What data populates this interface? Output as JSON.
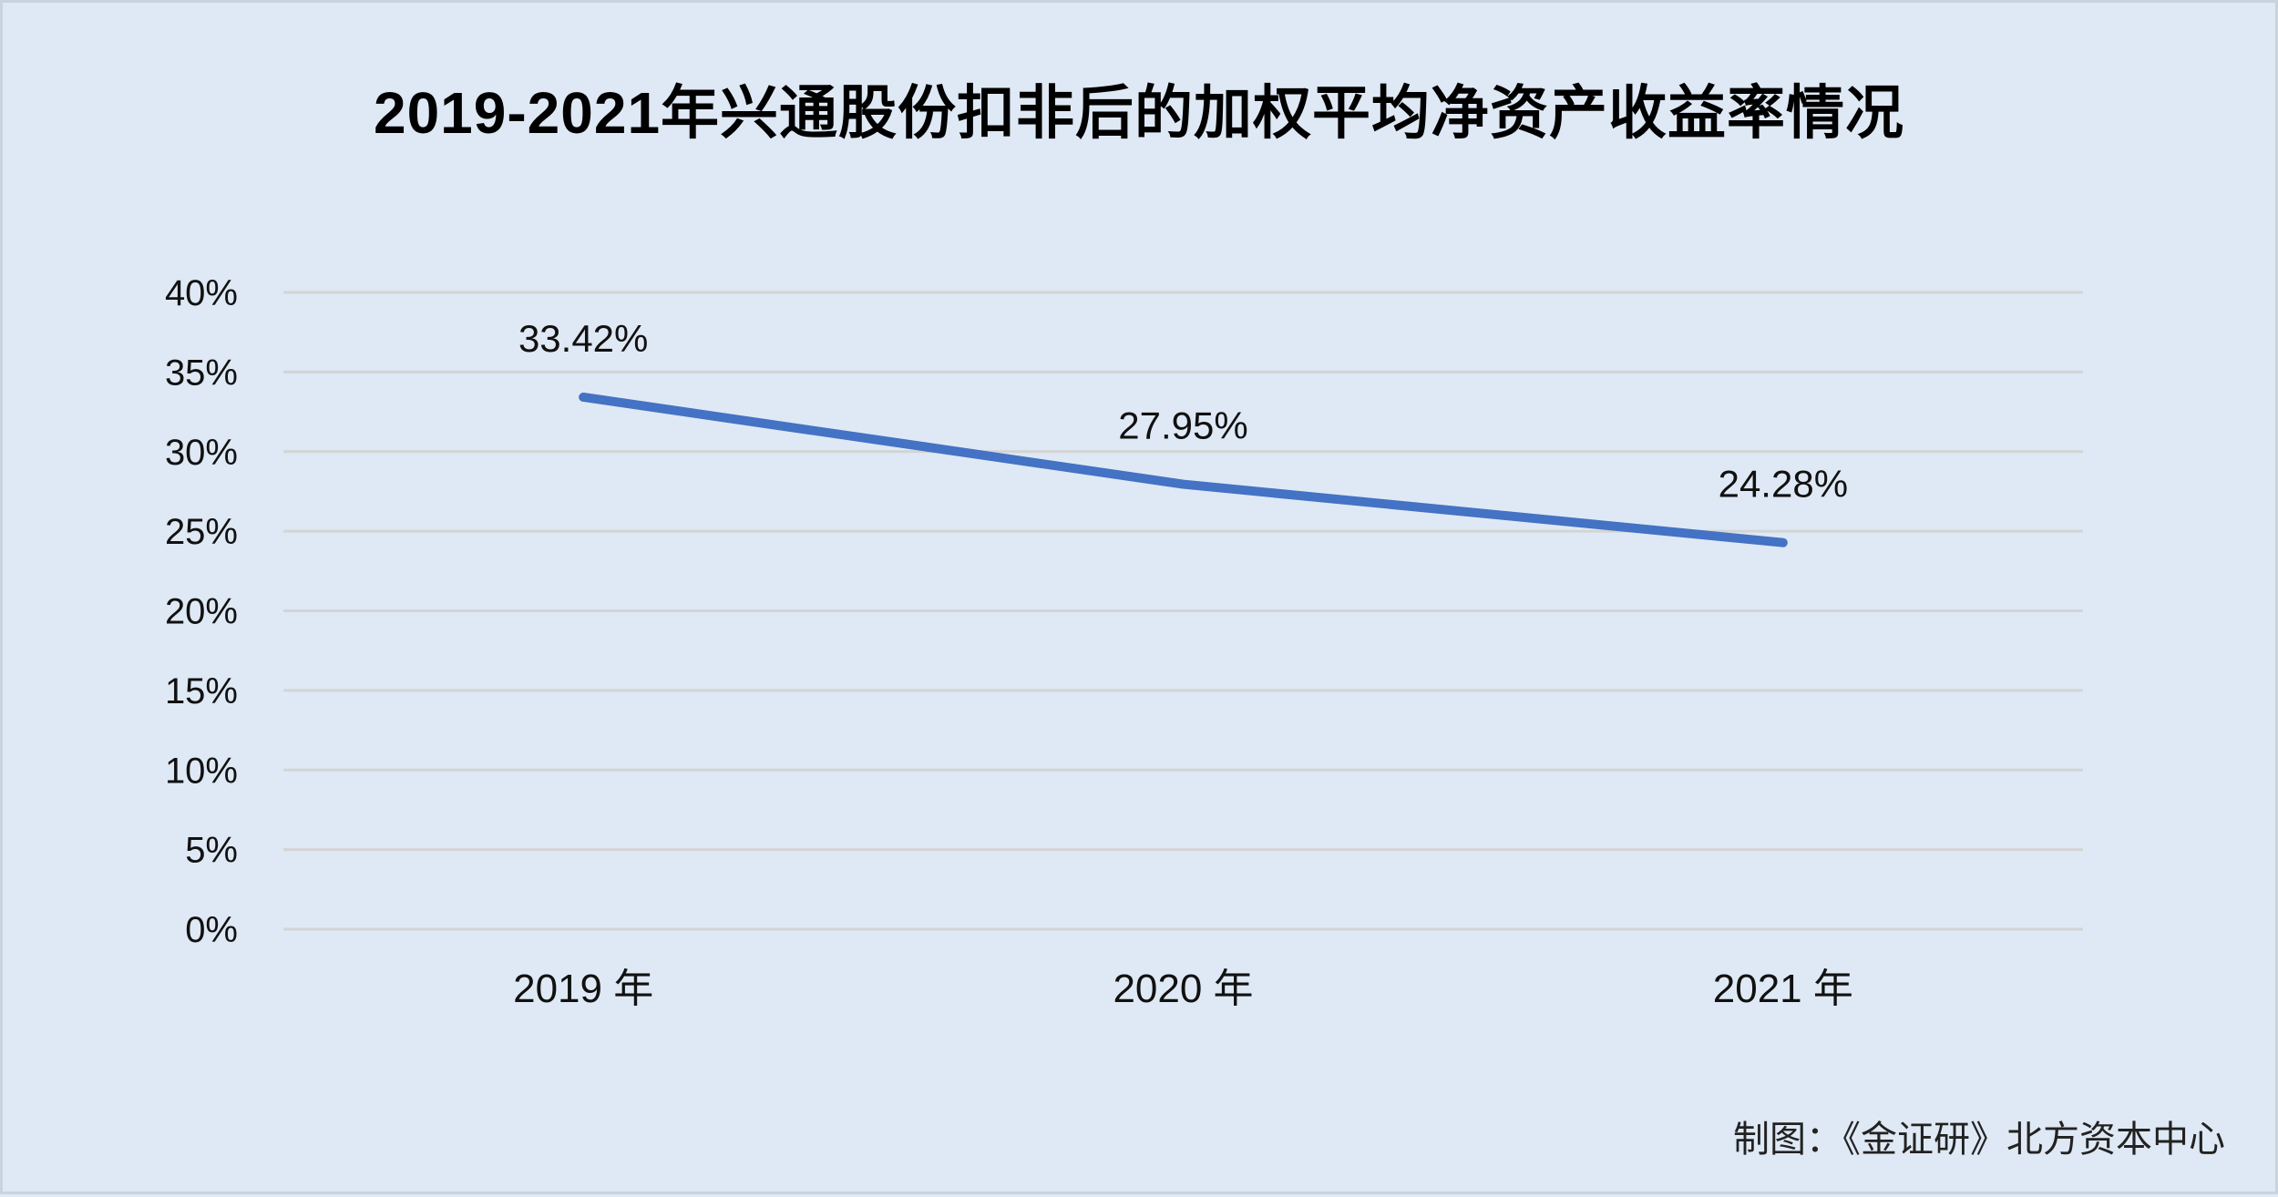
{
  "chart_data": {
    "type": "line",
    "title": "2019-2021年兴通股份扣非后的加权平均净资产收益率情况",
    "categories": [
      "2019 年",
      "2020 年",
      "2021 年"
    ],
    "series": [
      {
        "values": [
          33.42,
          27.95,
          24.28
        ],
        "data_labels": [
          "33.42%",
          "27.95%",
          "24.28%"
        ]
      }
    ],
    "ylim": [
      0,
      40
    ],
    "yticks": [
      "0%",
      "5%",
      "10%",
      "15%",
      "20%",
      "25%",
      "30%",
      "35%",
      "40%"
    ],
    "grid": true,
    "line_color": "#4472c4",
    "grid_color": "#d4d4d4",
    "xlabel": "",
    "ylabel": ""
  },
  "source_note": "制图：《金证研》北方资本中心"
}
